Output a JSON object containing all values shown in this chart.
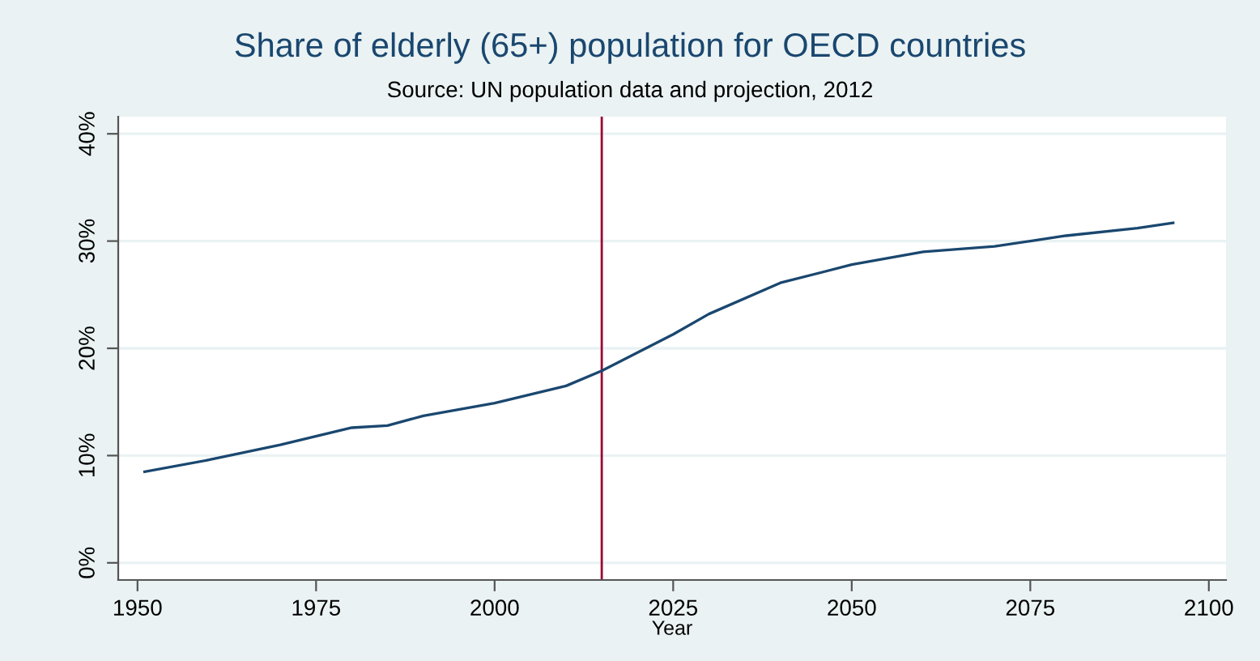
{
  "chart_data": {
    "type": "line",
    "title": "Share of elderly (65+) population for OECD countries",
    "subtitle": "Source: UN population data and projection, 2012",
    "xlabel": "Year",
    "x": [
      1951,
      1960,
      1970,
      1980,
      1985,
      1990,
      2000,
      2010,
      2015,
      2020,
      2025,
      2030,
      2040,
      2050,
      2060,
      2070,
      2075,
      2080,
      2090,
      2095
    ],
    "series": [
      {
        "color": "#1a476f",
        "values": [
          8.5,
          9.6,
          11.0,
          12.6,
          12.8,
          13.7,
          14.9,
          16.5,
          17.9,
          19.6,
          21.3,
          23.2,
          26.1,
          27.8,
          29.0,
          29.5,
          30.0,
          30.5,
          31.2,
          31.7
        ]
      }
    ],
    "xlim": [
      1947.3,
      2102.4
    ],
    "xticks": [
      1950,
      1975,
      2000,
      2025,
      2050,
      2075,
      2100
    ],
    "ylim": [
      -1.6,
      41.6
    ],
    "yticks": [
      {
        "value": 0,
        "label": "0%"
      },
      {
        "value": 10,
        "label": "10%"
      },
      {
        "value": 20,
        "label": "20%"
      },
      {
        "value": 30,
        "label": "30%"
      },
      {
        "value": 40,
        "label": "40%"
      }
    ],
    "ref_lines": [
      {
        "axis": "x",
        "value": 2015,
        "color": "#990033"
      }
    ],
    "grid": "y",
    "legend": false
  }
}
